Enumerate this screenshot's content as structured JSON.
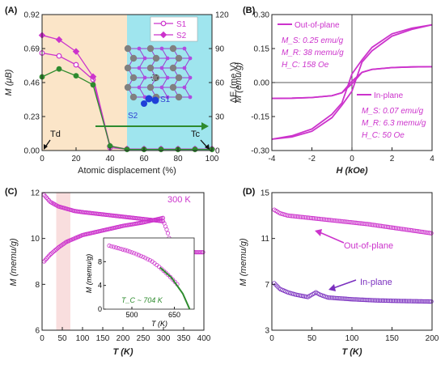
{
  "panels": {
    "a": {
      "label": "(A)",
      "xlabel": "Atomic displacement (%)",
      "ylabel_left": "M (μB)",
      "ylabel_right": "ΔE (me V)",
      "xlim": [
        0,
        100
      ],
      "ylim_left": [
        0,
        0.92
      ],
      "ylim_right": [
        0,
        120
      ],
      "xticks": [
        0,
        20,
        40,
        60,
        80,
        100
      ],
      "yticks_left": [
        "0.00",
        "0.23",
        "0.46",
        "0.69",
        "0.92"
      ],
      "yticks_right": [
        "0",
        "30",
        "60",
        "90",
        "120"
      ],
      "regions": [
        {
          "x0": 0,
          "x1": 50,
          "color": "#fbe5c8"
        },
        {
          "x0": 50,
          "x1": 100,
          "color": "#9fe5ee"
        }
      ],
      "legend": [
        "S1",
        "S2"
      ],
      "annotations": {
        "td": "Td",
        "tc": "Tc",
        "s1": "S1",
        "s2": "S2"
      },
      "colors": {
        "magenta": "#cc33cc",
        "green": "#2e8b2e"
      }
    },
    "b": {
      "label": "(B)",
      "xlabel": "H (kOe)",
      "ylabel": "M (emu/g)",
      "xlim": [
        -4,
        4
      ],
      "ylim": [
        -0.3,
        0.3
      ],
      "xticks": [
        "-4",
        "-2",
        "0",
        "2",
        "4"
      ],
      "yticks": [
        "-0.30",
        "-0.15",
        "0.00",
        "0.15",
        "0.30"
      ],
      "legend": [
        "Out-of-plane",
        "In-plane"
      ],
      "out_lines": [
        "M_S: 0.25 emu/g",
        "M_R: 38 memu/g",
        "H_C: 158 Oe"
      ],
      "in_lines": [
        "M_S: 0.07 emu/g",
        "M_R: 6.3 memu/g",
        "H_C: 50 Oe"
      ]
    },
    "c": {
      "label": "(C)",
      "xlabel": "T (K)",
      "ylabel": "M (memu/g)",
      "xlim": [
        0,
        400
      ],
      "ylim": [
        6,
        12
      ],
      "xticks": [
        "0",
        "50",
        "100",
        "150",
        "200",
        "250",
        "300",
        "350",
        "400"
      ],
      "yticks": [
        "6",
        "8",
        "10",
        "12"
      ],
      "annotation": "300 K",
      "inset": {
        "xlabel": "T (K)",
        "ylabel": "M (memu/g)",
        "xticks": [
          "500",
          "650"
        ],
        "yticks": [
          "0",
          "4",
          "8"
        ],
        "fit_label": "T_C ~ 704 K"
      }
    },
    "d": {
      "label": "(D)",
      "xlabel": "T (K)",
      "ylabel": "M (memu/g)",
      "xlim": [
        0,
        200
      ],
      "ylim": [
        3,
        15
      ],
      "xticks": [
        "0",
        "50",
        "100",
        "150",
        "200"
      ],
      "yticks": [
        "3",
        "7",
        "11",
        "15"
      ],
      "annotations": [
        "Out-of-plane",
        "In-plane"
      ]
    }
  },
  "chart_data": [
    {
      "type": "line",
      "xlabel": "Atomic displacement (%)",
      "ylabel": "M (μB)",
      "series": [
        {
          "name": "S1",
          "x": [
            0,
            10,
            20,
            30,
            40,
            50,
            60,
            70,
            80,
            90,
            100
          ],
          "values": [
            0.66,
            0.64,
            0.58,
            0.48,
            0.02,
            0.01,
            0.01,
            0.01,
            0.01,
            0.01,
            0.01
          ]
        },
        {
          "name": "S2",
          "x": [
            0,
            10,
            20,
            30,
            40,
            50,
            60,
            70,
            80,
            90,
            100
          ],
          "values": [
            0.78,
            0.75,
            0.67,
            0.5,
            0.03,
            0.01,
            0.01,
            0.01,
            0.01,
            0.01,
            0.01
          ]
        },
        {
          "x": [
            0,
            10,
            20,
            30,
            40,
            50,
            60,
            70,
            80,
            90,
            100
          ],
          "values": [
            65,
            72,
            66,
            58,
            4,
            1,
            1,
            1,
            1,
            1,
            1
          ]
        }
      ]
    },
    {
      "type": "line",
      "xlabel": "H (kOe)",
      "ylabel": "M (emu/g)",
      "xlim": [
        -4,
        4
      ],
      "ylim": [
        -0.3,
        0.3
      ],
      "series": [
        {
          "name": "Out-of-plane",
          "x": [
            -4,
            -3,
            -2,
            -1,
            -0.5,
            0,
            0.5,
            1,
            2,
            3,
            4
          ],
          "values_up": [
            -0.25,
            -0.235,
            -0.205,
            -0.14,
            -0.09,
            0.038,
            0.1,
            0.155,
            0.215,
            0.24,
            0.255
          ],
          "values_down": [
            -0.25,
            -0.24,
            -0.215,
            -0.155,
            -0.1,
            -0.038,
            0.09,
            0.14,
            0.205,
            0.235,
            0.255
          ]
        },
        {
          "name": "In-plane",
          "x": [
            -4,
            -3,
            -2,
            -1,
            -0.5,
            0,
            0.5,
            1,
            2,
            3,
            4
          ],
          "values_up": [
            -0.07,
            -0.069,
            -0.066,
            -0.058,
            -0.045,
            0.006,
            0.045,
            0.058,
            0.066,
            0.069,
            0.07
          ],
          "values_down": [
            -0.07,
            -0.069,
            -0.066,
            -0.058,
            -0.045,
            -0.006,
            0.045,
            0.058,
            0.066,
            0.069,
            0.07
          ]
        }
      ]
    },
    {
      "type": "scatter",
      "xlabel": "T (K)",
      "ylabel": "M (memu/g)",
      "xlim": [
        0,
        400
      ],
      "ylim": [
        6,
        12
      ],
      "series": [
        {
          "x": [
            5,
            20,
            40,
            60,
            80,
            100,
            150,
            200,
            250,
            300,
            310,
            320,
            340,
            360,
            380,
            400
          ],
          "values": [
            11.9,
            11.6,
            11.4,
            11.3,
            11.2,
            11.15,
            11.05,
            10.95,
            10.85,
            10.75,
            10.3,
            9.6,
            9.45,
            9.42,
            9.4,
            9.4
          ]
        },
        {
          "x": [
            5,
            20,
            40,
            60,
            80,
            100,
            150,
            200,
            250,
            300
          ],
          "values": [
            9.0,
            9.3,
            9.6,
            9.85,
            10.0,
            10.15,
            10.35,
            10.55,
            10.7,
            10.9
          ]
        }
      ],
      "inset": {
        "xlabel": "T (K)",
        "ylabel": "M (memu/g)",
        "xlim": [
          400,
          720
        ],
        "ylim": [
          0,
          12
        ],
        "x": [
          420,
          450,
          480,
          510,
          540,
          570,
          600,
          630,
          660
        ],
        "values": [
          10.7,
          10.3,
          9.9,
          9.4,
          8.8,
          8.1,
          7.0,
          5.7,
          4.2
        ],
        "fit_x": [
          600,
          640,
          680,
          704
        ],
        "fit_values": [
          7.0,
          5.3,
          2.6,
          0
        ]
      }
    },
    {
      "type": "scatter",
      "xlabel": "T (K)",
      "ylabel": "M (memu/g)",
      "xlim": [
        0,
        200
      ],
      "ylim": [
        3,
        15
      ],
      "series": [
        {
          "name": "Out-of-plane",
          "x": [
            3,
            10,
            20,
            40,
            60,
            80,
            100,
            120,
            140,
            160,
            180,
            200
          ],
          "values": [
            13.5,
            13.2,
            13.0,
            12.85,
            12.7,
            12.55,
            12.4,
            12.25,
            12.05,
            11.85,
            11.65,
            11.45
          ]
        },
        {
          "name": "In-plane",
          "x": [
            3,
            10,
            20,
            30,
            45,
            55,
            60,
            70,
            100,
            130,
            160,
            200
          ],
          "values": [
            7.1,
            6.6,
            6.3,
            6.1,
            5.9,
            6.3,
            6.1,
            5.85,
            5.7,
            5.6,
            5.55,
            5.5
          ]
        }
      ]
    }
  ]
}
